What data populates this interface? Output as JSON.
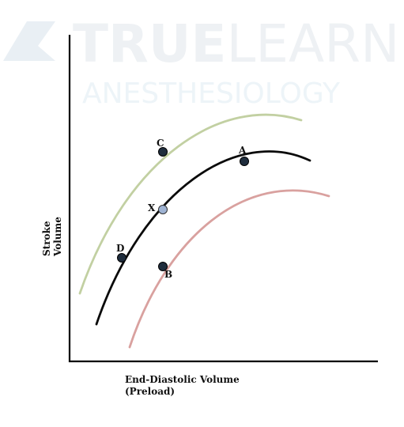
{
  "watermark": {
    "brand_bold": "TRUE",
    "brand_light": "LEARN",
    "subtitle": "ANESTHESIOLOGY",
    "logo_color": "#e9eff4"
  },
  "axes": {
    "x_label_line1": "End-Diastolic Volume",
    "x_label_line2": "(Preload)",
    "y_label_line1": "Stroke",
    "y_label_line2": "Volume"
  },
  "curves": {
    "upper_color": "#c2d0a2",
    "middle_color": "#0a0a0a",
    "lower_color": "#d9a19f"
  },
  "points": {
    "a": {
      "label": "A",
      "color": "#1f2d3d"
    },
    "b": {
      "label": "B",
      "color": "#1f2d3d"
    },
    "c": {
      "label": "C",
      "color": "#1f2d3d"
    },
    "d": {
      "label": "D",
      "color": "#1f2d3d"
    },
    "x": {
      "label": "X",
      "color": "#9fb3d3"
    }
  }
}
